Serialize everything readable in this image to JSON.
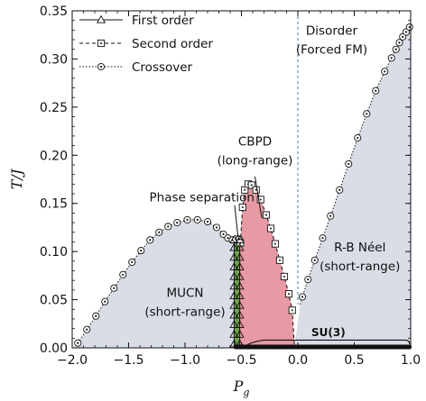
{
  "chart_data": {
    "type": "scatter",
    "xlabel": "P_g",
    "ylabel": "T/J",
    "xlim": [
      -2.0,
      1.0
    ],
    "ylim": [
      0.0,
      0.35
    ],
    "x_ticks": [
      -2.0,
      -1.5,
      -1.0,
      -0.5,
      0.0,
      0.5,
      1.0
    ],
    "x_tick_labels": [
      "−2.0",
      "−1.5",
      "−1.0",
      "−0.5",
      "0.0",
      "0.5",
      "1.0"
    ],
    "y_ticks": [
      0.0,
      0.05,
      0.1,
      0.15,
      0.2,
      0.25,
      0.3,
      0.35
    ],
    "y_tick_labels": [
      "0.00",
      "0.05",
      "0.10",
      "0.15",
      "0.20",
      "0.25",
      "0.30",
      "0.35"
    ],
    "legend": {
      "placement": "top-left",
      "entries": [
        {
          "label": "First order",
          "marker": "triangle",
          "line": "solid"
        },
        {
          "label": "Second order",
          "marker": "square",
          "line": "dashed"
        },
        {
          "label": "Crossover",
          "marker": "circle-dot",
          "line": "dotted"
        }
      ]
    },
    "colors": {
      "short_range_fill": "#d9dde6",
      "cbpd_fill": "#e79aa3",
      "phase_sep_fill": "#6fa34a",
      "vertical_line": "#4a7bb0"
    },
    "region_labels": [
      {
        "id": "disorder",
        "lines": [
          "Disorder",
          "(Forced FM)"
        ]
      },
      {
        "id": "cbpd",
        "lines": [
          "CBPD",
          "(long-range)"
        ]
      },
      {
        "id": "phase-separation",
        "lines": [
          "Phase separation"
        ]
      },
      {
        "id": "rb-neel",
        "lines": [
          "R-B Néel",
          "(short-range)"
        ]
      },
      {
        "id": "mucn",
        "lines": [
          "MUCN",
          "(short-range)"
        ]
      },
      {
        "id": "su3",
        "lines": [
          "SU(3)"
        ]
      }
    ],
    "vertical_reference_line": {
      "x": 0.0,
      "style": "dashed"
    },
    "series": [
      {
        "name": "Crossover",
        "marker": "circle-dot",
        "points": [
          [
            -1.95,
            0.005
          ],
          [
            -1.87,
            0.019
          ],
          [
            -1.79,
            0.033
          ],
          [
            -1.71,
            0.048
          ],
          [
            -1.63,
            0.062
          ],
          [
            -1.55,
            0.076
          ],
          [
            -1.47,
            0.089
          ],
          [
            -1.39,
            0.101
          ],
          [
            -1.31,
            0.112
          ],
          [
            -1.23,
            0.12
          ],
          [
            -1.15,
            0.126
          ],
          [
            -1.07,
            0.13
          ],
          [
            -0.98,
            0.133
          ],
          [
            -0.89,
            0.133
          ],
          [
            -0.8,
            0.131
          ],
          [
            -0.72,
            0.125
          ],
          [
            -0.66,
            0.118
          ],
          [
            -0.62,
            0.114
          ],
          [
            -0.58,
            0.112
          ],
          [
            -0.55,
            0.113
          ],
          [
            -0.52,
            0.113
          ],
          [
            0.04,
            0.053
          ],
          [
            0.09,
            0.071
          ],
          [
            0.15,
            0.091
          ],
          [
            0.22,
            0.114
          ],
          [
            0.29,
            0.137
          ],
          [
            0.37,
            0.164
          ],
          [
            0.45,
            0.191
          ],
          [
            0.53,
            0.218
          ],
          [
            0.61,
            0.243
          ],
          [
            0.69,
            0.267
          ],
          [
            0.77,
            0.287
          ],
          [
            0.83,
            0.301
          ],
          [
            0.87,
            0.31
          ],
          [
            0.9,
            0.317
          ],
          [
            0.93,
            0.323
          ],
          [
            0.96,
            0.328
          ],
          [
            0.99,
            0.333
          ]
        ]
      },
      {
        "name": "Second order",
        "marker": "square",
        "points": [
          [
            -0.51,
            0.109
          ],
          [
            -0.49,
            0.146
          ],
          [
            -0.47,
            0.164
          ],
          [
            -0.44,
            0.17
          ],
          [
            -0.41,
            0.169
          ],
          [
            -0.37,
            0.164
          ],
          [
            -0.33,
            0.154
          ],
          [
            -0.28,
            0.138
          ],
          [
            -0.24,
            0.124
          ],
          [
            -0.2,
            0.108
          ],
          [
            -0.16,
            0.091
          ],
          [
            -0.12,
            0.074
          ],
          [
            -0.08,
            0.056
          ],
          [
            -0.05,
            0.039
          ]
        ]
      },
      {
        "name": "First order",
        "marker": "triangle",
        "boundaries": [
          {
            "x": -0.565,
            "y_values": [
              0.004,
              0.014,
              0.024,
              0.034,
              0.044,
              0.054,
              0.064,
              0.074,
              0.084,
              0.094,
              0.104,
              0.112
            ]
          },
          {
            "x": -0.515,
            "y_values": [
              0.004,
              0.014,
              0.024,
              0.034,
              0.044,
              0.054,
              0.064,
              0.074,
              0.084,
              0.094,
              0.104,
              0.112
            ]
          }
        ]
      }
    ],
    "su3_line": {
      "x_start": -0.56,
      "x_end": 1.0,
      "y": 0.0
    },
    "su3_curve": [
      [
        -0.46,
        0.002
      ],
      [
        -0.42,
        0.006
      ],
      [
        -0.3,
        0.008
      ],
      [
        0.95,
        0.008
      ],
      [
        0.99,
        0.004
      ]
    ]
  }
}
